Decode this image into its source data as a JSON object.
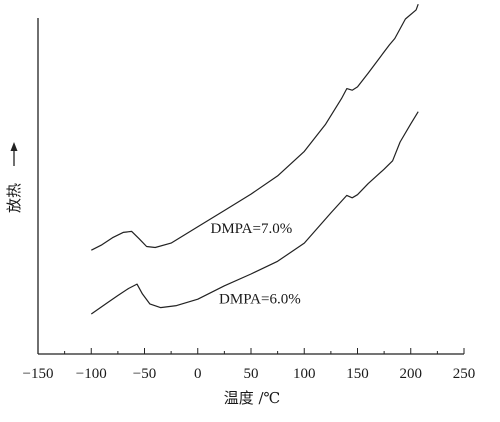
{
  "chart_data": {
    "type": "line",
    "xlabel": "温度 /℃",
    "ylabel": "放热",
    "xlim": [
      -150,
      250
    ],
    "ylim": [
      0,
      100
    ],
    "x_ticks": [
      -150,
      -100,
      -50,
      0,
      50,
      100,
      150,
      200,
      250
    ],
    "x_tick_labels": [
      "−150",
      "−100",
      "−50",
      "0",
      "50",
      "100",
      "150",
      "200",
      "250"
    ],
    "grid": false,
    "series": [
      {
        "name": "DMPA=7.0%",
        "points": [
          [
            -100,
            30.9
          ],
          [
            -90,
            32.5
          ],
          [
            -80,
            34.6
          ],
          [
            -70,
            36.2
          ],
          [
            -62,
            36.5
          ],
          [
            -55,
            34.3
          ],
          [
            -48,
            32.0
          ],
          [
            -40,
            31.7
          ],
          [
            -25,
            33.0
          ],
          [
            0,
            37.9
          ],
          [
            25,
            42.7
          ],
          [
            50,
            47.6
          ],
          [
            75,
            53.0
          ],
          [
            100,
            60.3
          ],
          [
            120,
            68.4
          ],
          [
            135,
            76.0
          ],
          [
            140,
            79.0
          ],
          [
            145,
            78.5
          ],
          [
            150,
            79.5
          ],
          [
            160,
            83.6
          ],
          [
            175,
            89.9
          ],
          [
            180,
            92.0
          ],
          [
            185,
            93.9
          ],
          [
            195,
            99.7
          ],
          [
            205,
            102.4
          ],
          [
            207,
            104.1
          ]
        ]
      },
      {
        "name": "DMPA=6.0%",
        "points": [
          [
            -100,
            11.9
          ],
          [
            -85,
            15.2
          ],
          [
            -75,
            17.4
          ],
          [
            -65,
            19.5
          ],
          [
            -57,
            20.8
          ],
          [
            -52,
            17.9
          ],
          [
            -45,
            14.9
          ],
          [
            -35,
            13.8
          ],
          [
            -20,
            14.4
          ],
          [
            0,
            16.3
          ],
          [
            25,
            20.3
          ],
          [
            50,
            23.8
          ],
          [
            75,
            27.6
          ],
          [
            100,
            33.0
          ],
          [
            125,
            42.0
          ],
          [
            140,
            47.2
          ],
          [
            145,
            46.5
          ],
          [
            150,
            47.4
          ],
          [
            160,
            50.7
          ],
          [
            175,
            55.0
          ],
          [
            183,
            57.5
          ],
          [
            190,
            63.1
          ],
          [
            200,
            68.5
          ],
          [
            207,
            72.1
          ]
        ]
      }
    ],
    "annotations": [
      {
        "text": "DMPA=7.0%",
        "x": 12,
        "y": 36
      },
      {
        "text": "DMPA=6.0%",
        "x": 20,
        "y": 15
      }
    ]
  }
}
